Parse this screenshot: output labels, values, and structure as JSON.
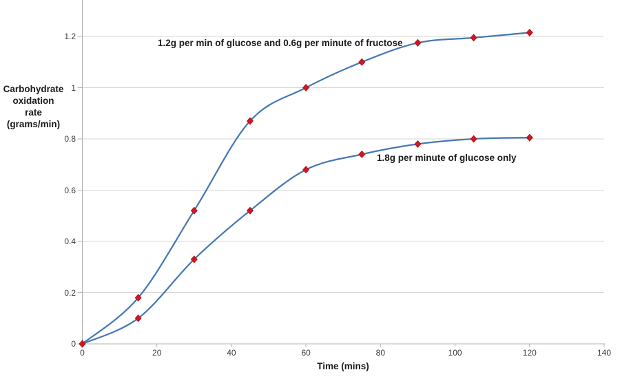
{
  "chart_data": {
    "type": "line",
    "title": "",
    "xlabel": "Time (mins)",
    "ylabel": "Carbohydrate\noxidation\nrate\n(grams/min)",
    "x": [
      0,
      15,
      30,
      45,
      60,
      75,
      90,
      105,
      120
    ],
    "series": [
      {
        "name": "1.2g per min of glucose and 0.6g per minute of fructose",
        "values": [
          0,
          0.18,
          0.52,
          0.87,
          1.0,
          1.1,
          1.175,
          1.195,
          1.215
        ]
      },
      {
        "name": "1.8g per minute of glucose only",
        "values": [
          0,
          0.1,
          0.33,
          0.52,
          0.68,
          0.74,
          0.78,
          0.8,
          0.805
        ]
      }
    ],
    "xlim": [
      0,
      140
    ],
    "ylim": [
      0,
      1.3
    ],
    "x_ticks": [
      0,
      20,
      40,
      60,
      80,
      100,
      120,
      140
    ],
    "x_tick_labels": [
      "0",
      "20",
      "40",
      "60",
      "80",
      "100",
      "120",
      "140"
    ],
    "y_ticks": [
      0,
      0.2,
      0.4,
      0.6,
      0.8,
      1,
      1.2
    ],
    "y_tick_labels": [
      "0",
      "0.2",
      "0.4",
      "0.6",
      "0.8",
      "1",
      "1.2"
    ],
    "grid": "horizontal",
    "legend": "none",
    "marker": "diamond",
    "line_style": "smooth",
    "colors": {
      "line": "#4678b4",
      "marker_fill": "#d2171e",
      "marker_stroke": "#a81114",
      "gridline": "#d4d4d4",
      "axis": "#b0b0b0",
      "tick_text": "#3a3a3a",
      "label_text": "#1a1a1a",
      "background": "#ffffff"
    }
  }
}
